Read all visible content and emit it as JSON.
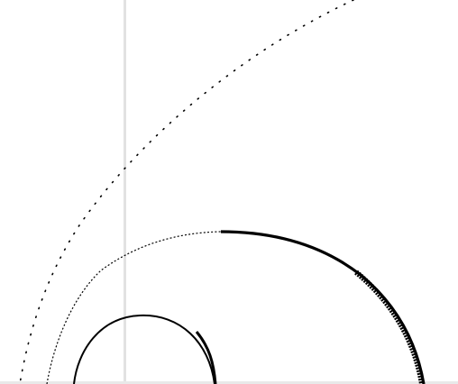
{
  "colors": {
    "background": "#ffffff",
    "stroke": "#000000",
    "guide_line": "#e2e2e2",
    "baseline": "#e9e9e9"
  },
  "icons": []
}
